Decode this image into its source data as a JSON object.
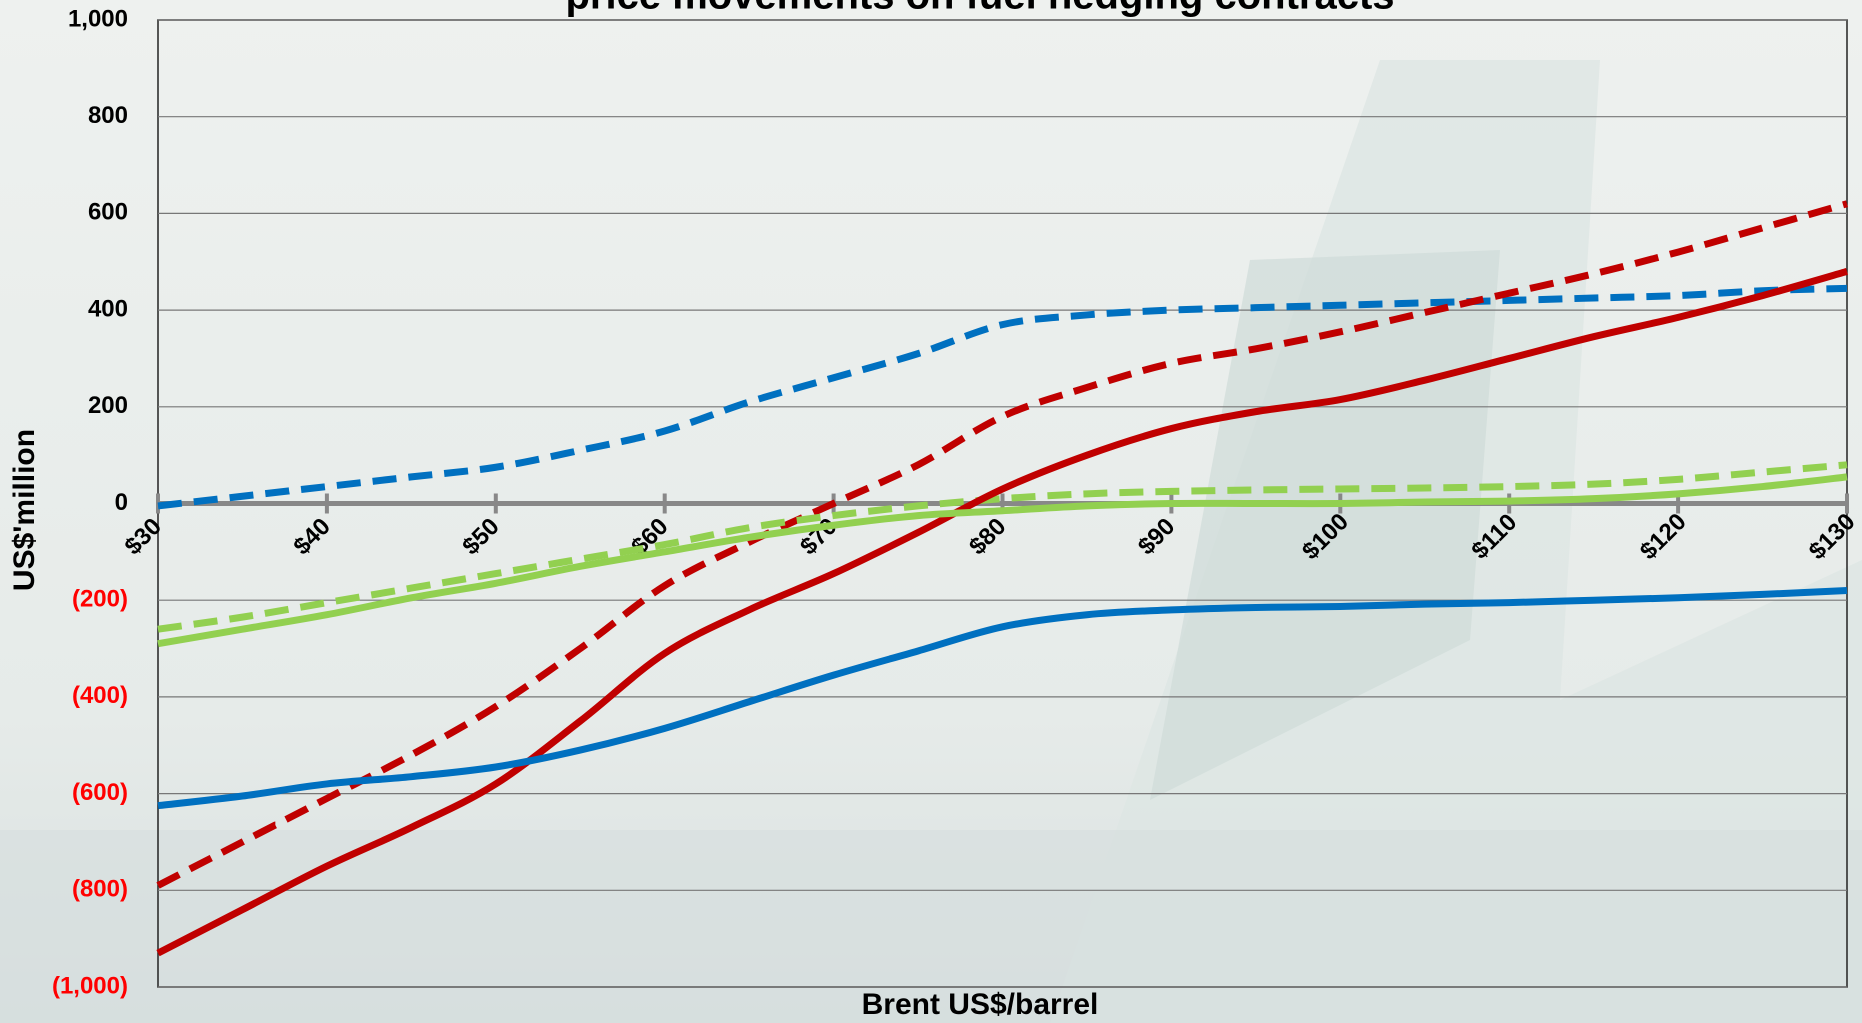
{
  "chart_data": {
    "type": "line",
    "title": "price movements on fuel hedging contracts",
    "x_label": "Brent US$/barrel",
    "y_label": "US$'million",
    "x": [
      30,
      35,
      40,
      45,
      50,
      55,
      60,
      65,
      70,
      75,
      80,
      85,
      90,
      95,
      100,
      105,
      110,
      115,
      120,
      125,
      130
    ],
    "series": [
      {
        "color": "#0070c0",
        "dashed": true,
        "values": [
          -5,
          15,
          35,
          55,
          75,
          110,
          150,
          210,
          260,
          310,
          370,
          390,
          400,
          405,
          410,
          415,
          420,
          425,
          430,
          440,
          445
        ]
      },
      {
        "color": "#c00000",
        "dashed": true,
        "values": [
          -790,
          -700,
          -610,
          -520,
          -420,
          -300,
          -170,
          -80,
          0,
          80,
          180,
          240,
          290,
          320,
          355,
          395,
          435,
          475,
          520,
          570,
          620
        ]
      },
      {
        "color": "#92d050",
        "dashed": true,
        "values": [
          -260,
          -235,
          -205,
          -175,
          -145,
          -115,
          -85,
          -50,
          -25,
          -5,
          10,
          20,
          25,
          28,
          30,
          32,
          35,
          40,
          50,
          65,
          80
        ]
      },
      {
        "color": "#c00000",
        "dashed": false,
        "values": [
          -930,
          -840,
          -750,
          -670,
          -580,
          -450,
          -310,
          -220,
          -145,
          -60,
          30,
          100,
          155,
          190,
          215,
          255,
          300,
          345,
          385,
          430,
          480
        ]
      },
      {
        "color": "#0070c0",
        "dashed": false,
        "values": [
          -625,
          -605,
          -580,
          -565,
          -545,
          -510,
          -465,
          -410,
          -355,
          -305,
          -255,
          -230,
          -220,
          -215,
          -213,
          -208,
          -205,
          -200,
          -195,
          -188,
          -180
        ]
      },
      {
        "color": "#92d050",
        "dashed": false,
        "values": [
          -290,
          -260,
          -230,
          -195,
          -165,
          -130,
          -100,
          -70,
          -45,
          -25,
          -15,
          -5,
          0,
          0,
          0,
          3,
          5,
          10,
          20,
          35,
          55
        ]
      }
    ],
    "xlim": [
      30,
      130
    ],
    "xticks": [
      {
        "value": 30,
        "label": "$30"
      },
      {
        "value": 40,
        "label": "$40"
      },
      {
        "value": 50,
        "label": "$50"
      },
      {
        "value": 60,
        "label": "$60"
      },
      {
        "value": 70,
        "label": "$70"
      },
      {
        "value": 80,
        "label": "$80"
      },
      {
        "value": 90,
        "label": "$90"
      },
      {
        "value": 100,
        "label": "$100"
      },
      {
        "value": 110,
        "label": "$110"
      },
      {
        "value": 120,
        "label": "$120"
      },
      {
        "value": 130,
        "label": "$130"
      }
    ],
    "ylim": [
      -1000,
      1000
    ],
    "yticks": [
      {
        "value": 1000,
        "label": "1,000"
      },
      800,
      600,
      400,
      200,
      0,
      {
        "value": -200,
        "label": "(200)"
      },
      {
        "value": -400,
        "label": "(400)"
      },
      {
        "value": -600,
        "label": "(600)"
      },
      {
        "value": -800,
        "label": "(800)"
      },
      {
        "value": -1000,
        "label": "(1,000)"
      }
    ],
    "grid": true,
    "negative_label_color": "#ff0000"
  }
}
